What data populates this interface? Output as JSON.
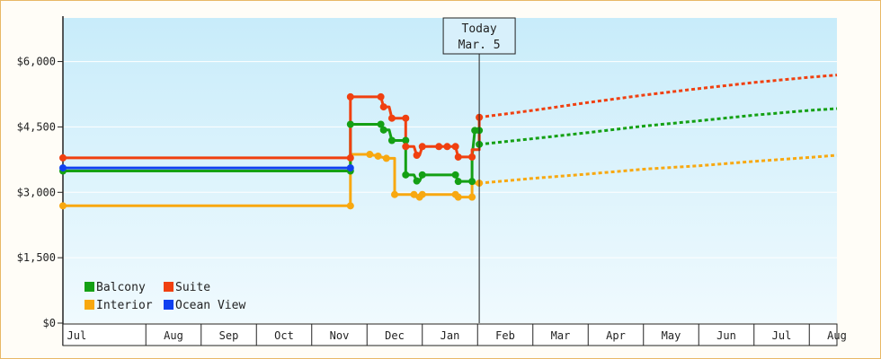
{
  "chart_data": {
    "type": "line",
    "y_axis": {
      "min": 0,
      "max": 7000,
      "ticks": [
        {
          "value": 0,
          "label": "$0"
        },
        {
          "value": 1500,
          "label": "$1,500"
        },
        {
          "value": 3000,
          "label": "$3,000"
        },
        {
          "value": 4500,
          "label": "$4,500"
        },
        {
          "value": 6000,
          "label": "$6,000"
        }
      ]
    },
    "x_axis": {
      "start": 0,
      "end": 14,
      "months": [
        "Jul",
        "Aug",
        "Sep",
        "Oct",
        "Nov",
        "Dec",
        "Jan",
        "Feb",
        "Mar",
        "Apr",
        "May",
        "Jun",
        "Jul",
        "Aug"
      ]
    },
    "today": {
      "x": 7.53,
      "line1": "Today",
      "line2": "Mar. 5"
    },
    "legend": {
      "position": "bottom-left",
      "items": [
        {
          "key": "balcony",
          "label": "Balcony"
        },
        {
          "key": "suite",
          "label": "Suite"
        },
        {
          "key": "interior",
          "label": "Interior"
        },
        {
          "key": "ocean_view",
          "label": "Ocean View"
        }
      ]
    },
    "colors": {
      "balcony": "#14a014",
      "suite": "#f04010",
      "interior": "#f8a810",
      "ocean_view": "#1040f0",
      "background_top": "#c8ecfa",
      "background_bottom": "#f0fafe",
      "axis": "#222222",
      "grid": "#ffffff"
    },
    "series": [
      {
        "key": "ocean_view",
        "name": "Ocean View",
        "points": [
          [
            0,
            3560
          ],
          [
            5.2,
            3560
          ]
        ],
        "forecast": []
      },
      {
        "key": "interior",
        "name": "Interior",
        "points": [
          [
            0,
            2690
          ],
          [
            5.2,
            2690
          ],
          [
            5.2,
            3870
          ],
          [
            5.55,
            3870
          ],
          [
            5.7,
            3830
          ],
          [
            5.85,
            3780
          ],
          [
            6.0,
            3780
          ],
          [
            6.0,
            2950
          ],
          [
            6.35,
            2950
          ],
          [
            6.4,
            2890
          ],
          [
            6.45,
            2890
          ],
          [
            6.5,
            2950
          ],
          [
            7.1,
            2950
          ],
          [
            7.15,
            2890
          ],
          [
            7.4,
            2890
          ],
          [
            7.4,
            3210
          ],
          [
            7.53,
            3210
          ]
        ],
        "forecast": [
          [
            7.53,
            3210
          ],
          [
            8.5,
            3320
          ],
          [
            9.5,
            3420
          ],
          [
            10.5,
            3530
          ],
          [
            11.5,
            3610
          ],
          [
            12.5,
            3710
          ],
          [
            13.5,
            3800
          ],
          [
            14,
            3850
          ]
        ]
      },
      {
        "key": "balcony",
        "name": "Balcony",
        "points": [
          [
            0,
            3490
          ],
          [
            5.2,
            3490
          ],
          [
            5.2,
            4560
          ],
          [
            5.75,
            4560
          ],
          [
            5.8,
            4430
          ],
          [
            5.9,
            4430
          ],
          [
            5.95,
            4190
          ],
          [
            6.2,
            4190
          ],
          [
            6.2,
            3400
          ],
          [
            6.35,
            3400
          ],
          [
            6.4,
            3260
          ],
          [
            6.45,
            3260
          ],
          [
            6.5,
            3400
          ],
          [
            7.1,
            3400
          ],
          [
            7.15,
            3250
          ],
          [
            7.4,
            3250
          ],
          [
            7.4,
            3810
          ],
          [
            7.45,
            4420
          ],
          [
            7.53,
            4420
          ],
          [
            7.53,
            4100
          ]
        ],
        "forecast": [
          [
            7.53,
            4100
          ],
          [
            8.5,
            4230
          ],
          [
            9.5,
            4370
          ],
          [
            10.5,
            4520
          ],
          [
            11.5,
            4640
          ],
          [
            12.5,
            4770
          ],
          [
            13.5,
            4880
          ],
          [
            14,
            4920
          ]
        ]
      },
      {
        "key": "suite",
        "name": "Suite",
        "points": [
          [
            0,
            3790
          ],
          [
            5.2,
            3790
          ],
          [
            5.2,
            5190
          ],
          [
            5.75,
            5190
          ],
          [
            5.8,
            4960
          ],
          [
            5.9,
            4960
          ],
          [
            5.95,
            4700
          ],
          [
            6.2,
            4700
          ],
          [
            6.2,
            4050
          ],
          [
            6.35,
            4050
          ],
          [
            6.4,
            3850
          ],
          [
            6.45,
            3850
          ],
          [
            6.5,
            4050
          ],
          [
            7.1,
            4050
          ],
          [
            7.15,
            3810
          ],
          [
            7.4,
            3810
          ],
          [
            7.4,
            3980
          ],
          [
            7.53,
            3980
          ],
          [
            7.53,
            4720
          ]
        ],
        "forecast": [
          [
            7.53,
            4720
          ],
          [
            8.5,
            4880
          ],
          [
            9.5,
            5060
          ],
          [
            10.5,
            5230
          ],
          [
            11.5,
            5380
          ],
          [
            12.5,
            5520
          ],
          [
            13.5,
            5640
          ],
          [
            14,
            5690
          ]
        ]
      }
    ],
    "markers": {
      "balcony": [
        [
          0,
          3490
        ],
        [
          5.2,
          3490
        ],
        [
          5.2,
          4560
        ],
        [
          5.75,
          4560
        ],
        [
          5.8,
          4430
        ],
        [
          5.95,
          4190
        ],
        [
          6.2,
          4190
        ],
        [
          6.2,
          3400
        ],
        [
          6.4,
          3260
        ],
        [
          6.5,
          3400
        ],
        [
          7.1,
          3400
        ],
        [
          7.15,
          3250
        ],
        [
          7.4,
          3250
        ],
        [
          7.45,
          4420
        ],
        [
          7.53,
          4420
        ],
        [
          7.53,
          4100
        ]
      ],
      "suite": [
        [
          0,
          3790
        ],
        [
          5.2,
          3790
        ],
        [
          5.2,
          5190
        ],
        [
          5.75,
          5190
        ],
        [
          5.8,
          4960
        ],
        [
          5.95,
          4700
        ],
        [
          6.2,
          4700
        ],
        [
          6.2,
          4050
        ],
        [
          6.4,
          3850
        ],
        [
          6.5,
          4050
        ],
        [
          6.8,
          4050
        ],
        [
          6.95,
          4050
        ],
        [
          7.1,
          4050
        ],
        [
          7.15,
          3810
        ],
        [
          7.4,
          3810
        ],
        [
          7.53,
          4720
        ]
      ],
      "interior": [
        [
          0,
          2690
        ],
        [
          5.2,
          2690
        ],
        [
          5.55,
          3870
        ],
        [
          5.7,
          3830
        ],
        [
          5.85,
          3780
        ],
        [
          6.0,
          2950
        ],
        [
          6.35,
          2950
        ],
        [
          6.45,
          2890
        ],
        [
          6.5,
          2950
        ],
        [
          7.1,
          2950
        ],
        [
          7.15,
          2890
        ],
        [
          7.4,
          2890
        ],
        [
          7.53,
          3210
        ]
      ],
      "ocean_view": [
        [
          0,
          3560
        ],
        [
          5.2,
          3560
        ]
      ]
    }
  }
}
